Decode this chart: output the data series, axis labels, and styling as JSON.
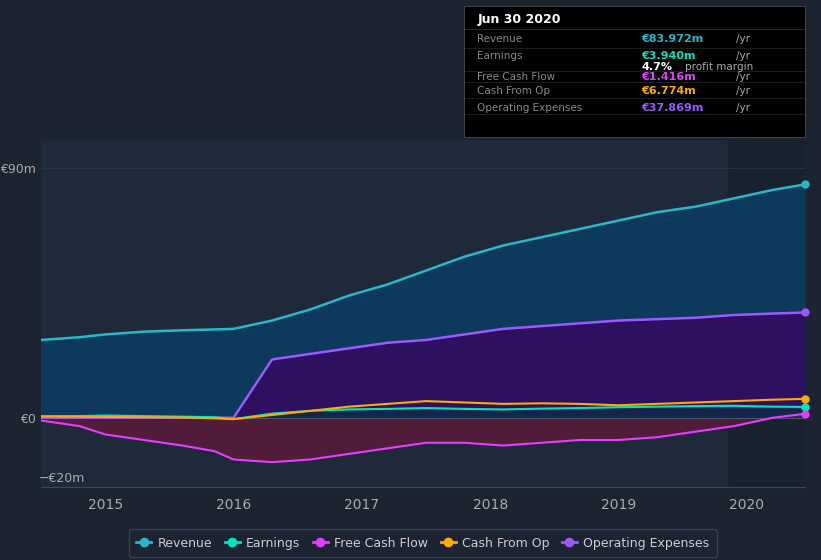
{
  "bg_color": "#1c2331",
  "plot_bg_color": "#1e2a3a",
  "title": "Jun 30 2020",
  "x_years": [
    2014.5,
    2014.8,
    2015.0,
    2015.3,
    2015.6,
    2015.85,
    2016.0,
    2016.3,
    2016.6,
    2016.9,
    2017.2,
    2017.5,
    2017.8,
    2018.1,
    2018.4,
    2018.7,
    2019.0,
    2019.3,
    2019.6,
    2019.9,
    2020.2,
    2020.45
  ],
  "revenue": [
    28,
    29,
    30,
    31,
    31.5,
    31.8,
    32,
    35,
    39,
    44,
    48,
    53,
    58,
    62,
    65,
    68,
    71,
    74,
    76,
    79,
    82,
    84
  ],
  "earnings": [
    0.5,
    0.6,
    0.8,
    0.6,
    0.4,
    0.2,
    -0.5,
    1.5,
    2.5,
    3.0,
    3.2,
    3.5,
    3.2,
    3.0,
    3.3,
    3.5,
    3.8,
    4.0,
    4.2,
    4.3,
    4.0,
    3.9
  ],
  "free_cash_flow": [
    -1,
    -3,
    -6,
    -8,
    -10,
    -12,
    -15,
    -16,
    -15,
    -13,
    -11,
    -9,
    -9,
    -10,
    -9,
    -8,
    -8,
    -7,
    -5,
    -3,
    0,
    1.4
  ],
  "cash_from_op": [
    0.5,
    0.4,
    0.3,
    0.2,
    0.1,
    -0.2,
    -0.5,
    1.0,
    2.5,
    4.0,
    5.0,
    6.0,
    5.5,
    5.0,
    5.2,
    5.0,
    4.5,
    5.0,
    5.5,
    6.0,
    6.5,
    6.8
  ],
  "op_expenses": [
    0,
    0,
    0,
    0,
    0,
    0,
    0,
    21,
    23,
    25,
    27,
    28,
    30,
    32,
    33,
    34,
    35,
    35.5,
    36,
    37,
    37.5,
    37.9
  ],
  "revenue_color": "#2ab7ca",
  "earnings_color": "#00e5c0",
  "fcf_color": "#e040fb",
  "cash_op_color": "#ffaa00",
  "op_exp_color": "#9b59ff",
  "revenue_fill": "#0d3a5c",
  "op_exp_fill": "#2d1060",
  "fcf_fill": "#5a1a3a",
  "earnings_fill": "#003a3a",
  "ylim_min": -25,
  "ylim_max": 100,
  "xticks": [
    2015,
    2016,
    2017,
    2018,
    2019,
    2020
  ],
  "legend_items": [
    {
      "label": "Revenue",
      "color": "#2ab7ca"
    },
    {
      "label": "Earnings",
      "color": "#00e5c0"
    },
    {
      "label": "Free Cash Flow",
      "color": "#e040fb"
    },
    {
      "label": "Cash From Op",
      "color": "#ffaa00"
    },
    {
      "label": "Operating Expenses",
      "color": "#9b59ff"
    }
  ],
  "info_rows": [
    {
      "label": "Revenue",
      "value": "€83.972m",
      "suffix": " /yr",
      "color": "#2ab7ca",
      "sep_above": false
    },
    {
      "label": "Earnings",
      "value": "€3.940m",
      "suffix": " /yr",
      "color": "#00e5c0",
      "sep_above": false
    },
    {
      "label": "",
      "value": "",
      "suffix": "",
      "color": "#ffffff",
      "sep_above": false
    },
    {
      "label": "Free Cash Flow",
      "value": "€1.416m",
      "suffix": " /yr",
      "color": "#e040fb",
      "sep_above": true
    },
    {
      "label": "Cash From Op",
      "value": "€6.774m",
      "suffix": " /yr",
      "color": "#ffaa00",
      "sep_above": true
    },
    {
      "label": "Operating Expenses",
      "value": "€37.869m",
      "suffix": " /yr",
      "color": "#9b59ff",
      "sep_above": true
    }
  ]
}
